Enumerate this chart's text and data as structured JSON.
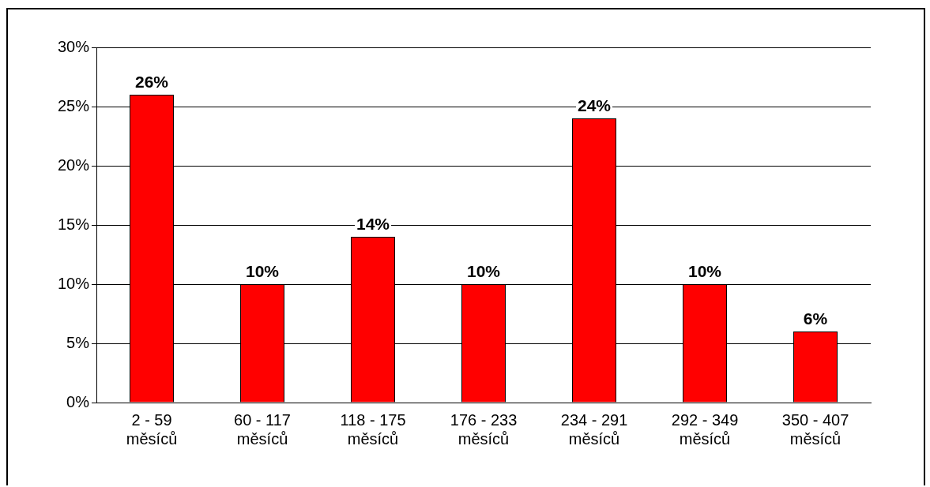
{
  "chart_data": {
    "type": "bar",
    "categories": [
      "2 - 59\nměsíců",
      "60 - 117\nměsíců",
      "118 - 175\nměsíců",
      "176 - 233\nměsíců",
      "234 - 291\nměsíců",
      "292 - 349\nměsíců",
      "350 - 407\nměsíců"
    ],
    "values": [
      26,
      10,
      14,
      10,
      24,
      10,
      6
    ],
    "value_labels": [
      "26%",
      "10%",
      "14%",
      "10%",
      "24%",
      "10%",
      "6%"
    ],
    "color": "#ff0000",
    "ylim": [
      0,
      30
    ],
    "yticks": [
      {
        "value": 0,
        "label": "0%"
      },
      {
        "value": 5,
        "label": "5%"
      },
      {
        "value": 10,
        "label": "10%"
      },
      {
        "value": 15,
        "label": "15%"
      },
      {
        "value": 20,
        "label": "20%"
      },
      {
        "value": 25,
        "label": "25%"
      },
      {
        "value": 30,
        "label": "30%"
      }
    ],
    "grid": "y",
    "legend": false
  }
}
